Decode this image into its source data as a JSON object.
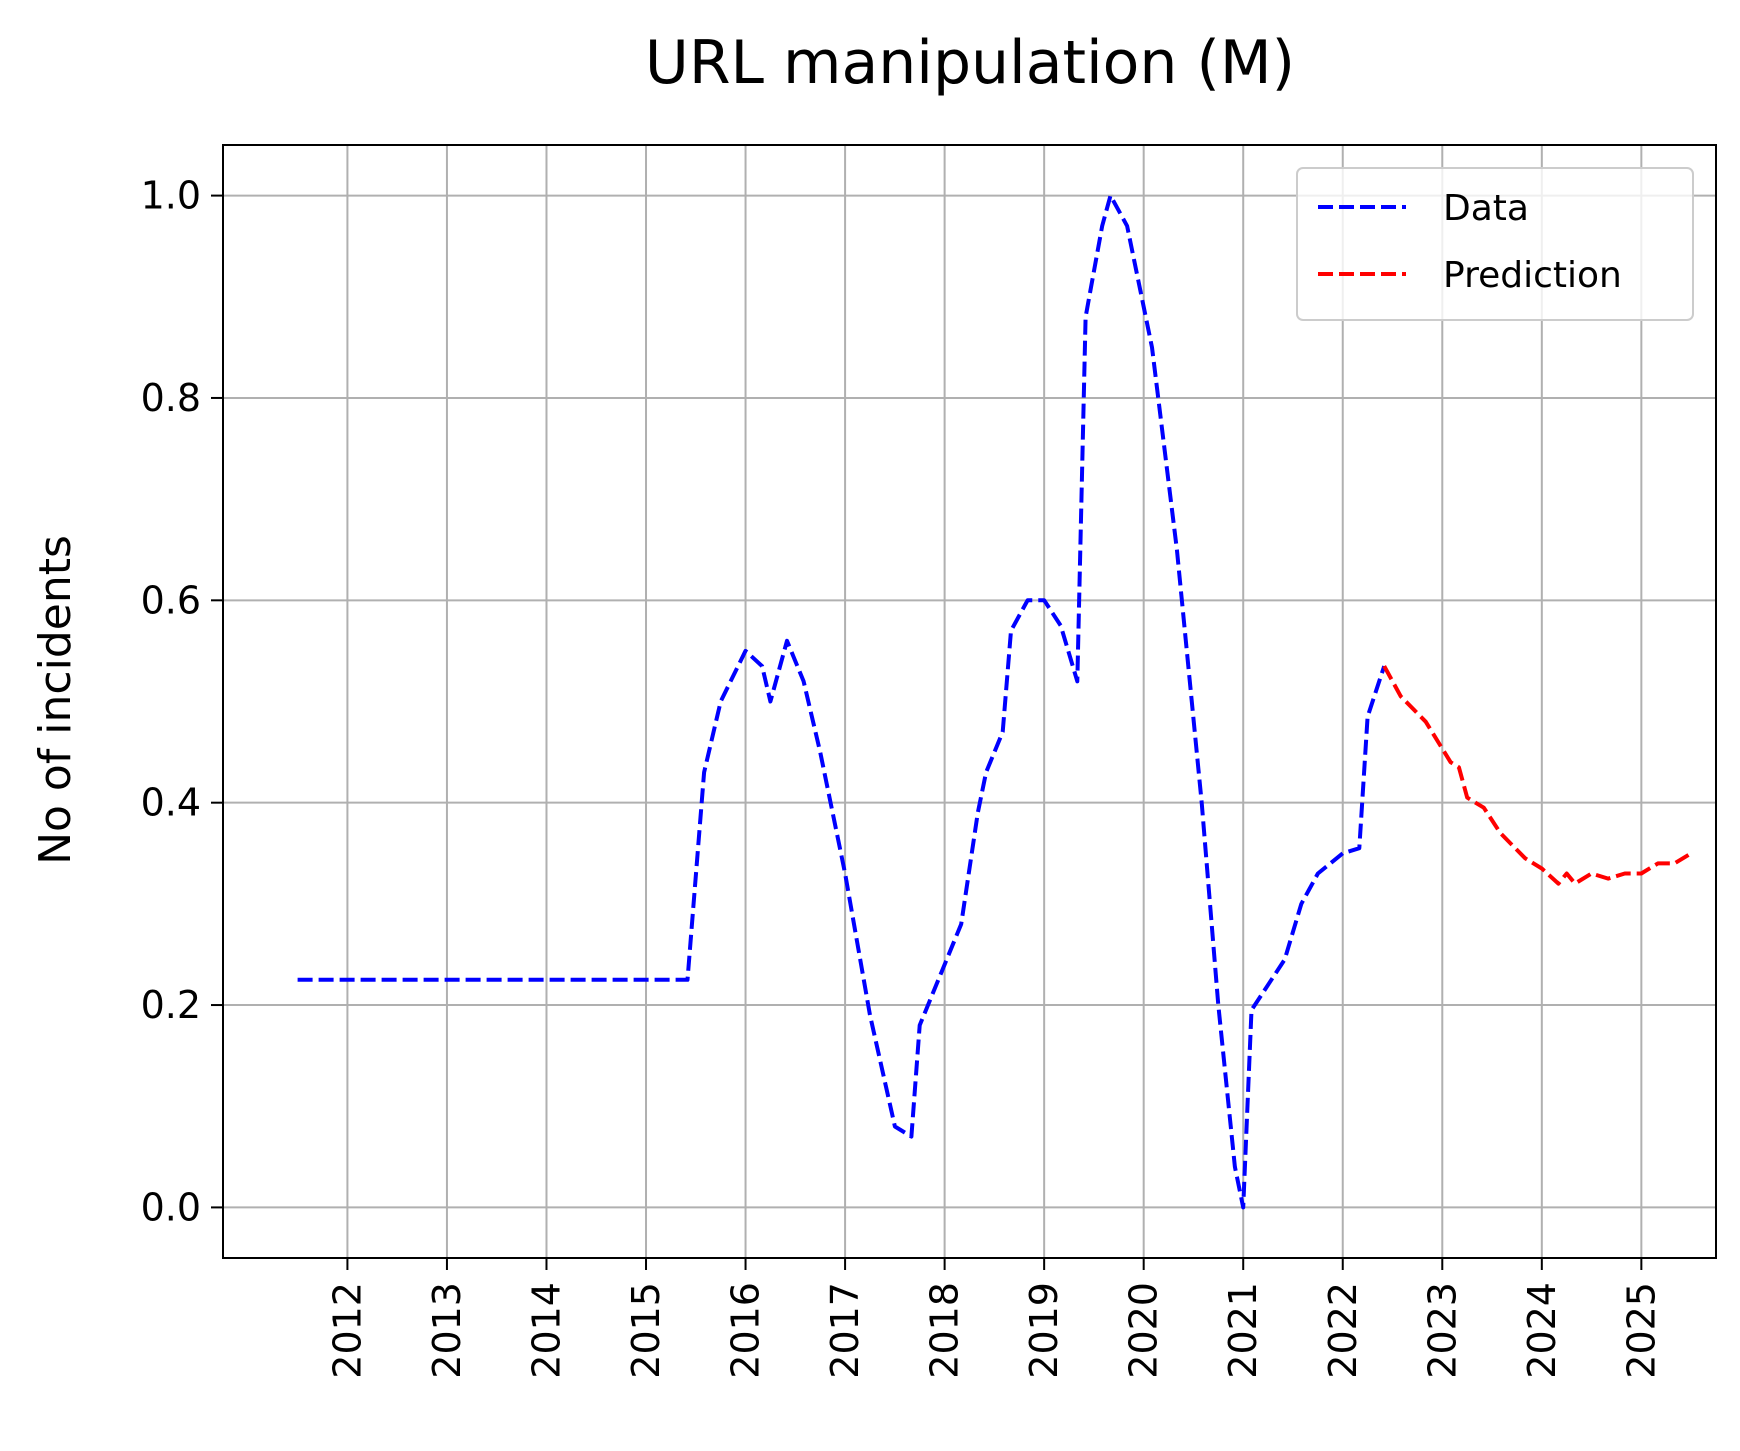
{
  "chart_data": {
    "type": "line",
    "title": "URL manipulation (M)",
    "xlabel": "",
    "ylabel": "No of incidents",
    "xlim": [
      "2010-10",
      "2025-10"
    ],
    "ylim": [
      -0.05,
      1.05
    ],
    "x_ticks": [
      "2012",
      "2013",
      "2014",
      "2015",
      "2016",
      "2017",
      "2018",
      "2019",
      "2020",
      "2021",
      "2022",
      "2023",
      "2024",
      "2025"
    ],
    "y_ticks": [
      "0.0",
      "0.2",
      "0.4",
      "0.6",
      "0.8",
      "1.0"
    ],
    "grid": true,
    "legend": "top-right",
    "series": [
      {
        "name": "Data",
        "color": "#0000ff",
        "style": "dashed",
        "points": [
          [
            "2011-07",
            0.225
          ],
          [
            "2015-06",
            0.225
          ],
          [
            "2015-08",
            0.43
          ],
          [
            "2015-10",
            0.5
          ],
          [
            "2016-01",
            0.55
          ],
          [
            "2016-03",
            0.535
          ],
          [
            "2016-04",
            0.5
          ],
          [
            "2016-06",
            0.56
          ],
          [
            "2016-08",
            0.52
          ],
          [
            "2016-10",
            0.45
          ],
          [
            "2017-01",
            0.33
          ],
          [
            "2017-04",
            0.19
          ],
          [
            "2017-07",
            0.08
          ],
          [
            "2017-09",
            0.07
          ],
          [
            "2017-10",
            0.18
          ],
          [
            "2018-01",
            0.24
          ],
          [
            "2018-03",
            0.28
          ],
          [
            "2018-05",
            0.39
          ],
          [
            "2018-06",
            0.43
          ],
          [
            "2018-08",
            0.47
          ],
          [
            "2018-09",
            0.57
          ],
          [
            "2018-11",
            0.6
          ],
          [
            "2019-01",
            0.6
          ],
          [
            "2019-03",
            0.575
          ],
          [
            "2019-05",
            0.52
          ],
          [
            "2019-06",
            0.88
          ],
          [
            "2019-08",
            0.97
          ],
          [
            "2019-09",
            1.0
          ],
          [
            "2019-11",
            0.97
          ],
          [
            "2020-02",
            0.85
          ],
          [
            "2020-05",
            0.65
          ],
          [
            "2020-08",
            0.4
          ],
          [
            "2020-10",
            0.2
          ],
          [
            "2020-12",
            0.04
          ],
          [
            "2021-01",
            0.0
          ],
          [
            "2021-02",
            0.195
          ],
          [
            "2021-04",
            0.22
          ],
          [
            "2021-06",
            0.245
          ],
          [
            "2021-08",
            0.3
          ],
          [
            "2021-10",
            0.33
          ],
          [
            "2022-01",
            0.35
          ],
          [
            "2022-03",
            0.355
          ],
          [
            "2022-04",
            0.485
          ],
          [
            "2022-06",
            0.535
          ]
        ]
      },
      {
        "name": "Prediction",
        "color": "#ff0000",
        "style": "dashed",
        "points": [
          [
            "2022-06",
            0.535
          ],
          [
            "2022-08",
            0.505
          ],
          [
            "2022-11",
            0.48
          ],
          [
            "2023-02",
            0.44
          ],
          [
            "2023-03",
            0.435
          ],
          [
            "2023-04",
            0.405
          ],
          [
            "2023-06",
            0.395
          ],
          [
            "2023-08",
            0.37
          ],
          [
            "2023-11",
            0.345
          ],
          [
            "2024-01",
            0.335
          ],
          [
            "2024-03",
            0.32
          ],
          [
            "2024-04",
            0.33
          ],
          [
            "2024-05",
            0.32
          ],
          [
            "2024-07",
            0.33
          ],
          [
            "2024-09",
            0.325
          ],
          [
            "2024-11",
            0.33
          ],
          [
            "2025-01",
            0.33
          ],
          [
            "2025-03",
            0.34
          ],
          [
            "2025-05",
            0.34
          ],
          [
            "2025-07",
            0.35
          ]
        ]
      }
    ]
  }
}
